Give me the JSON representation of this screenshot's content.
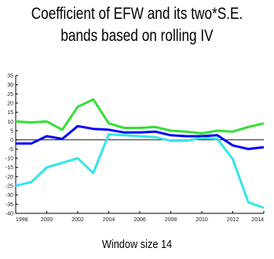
{
  "chart_data": {
    "type": "line",
    "title_lines": [
      "Coefficient of EFW and its two*S.E.",
      "bands based on rolling IV"
    ],
    "xlabel": "Window size 14",
    "ylabel": "",
    "x": [
      1998,
      1999,
      2000,
      2001,
      2002,
      2003,
      2004,
      2005,
      2006,
      2007,
      2008,
      2009,
      2010,
      2011,
      2012,
      2013,
      2014
    ],
    "xlim": [
      1998,
      2014
    ],
    "ylim": [
      -40,
      35
    ],
    "x_ticks": [
      1998,
      2000,
      2002,
      2004,
      2006,
      2008,
      2010,
      2012,
      2014
    ],
    "x_tick_labels": [
      "1998",
      "2000",
      "2002",
      "2004",
      "2006",
      "2008",
      "2010",
      "2012",
      "2014"
    ],
    "y_ticks": [
      -40,
      -35,
      -30,
      -25,
      -20,
      -15,
      -10,
      -5,
      0,
      5,
      10,
      15,
      20,
      25,
      30,
      35
    ],
    "y_tick_labels": [
      "-40",
      "-35",
      "-30",
      "-25",
      "-20",
      "-15",
      "-10",
      "-5",
      "0",
      "5",
      "10",
      "15",
      "20",
      "25",
      "30",
      "35"
    ],
    "grid": false,
    "series": [
      {
        "color": "#33e033",
        "values": [
          10,
          9.5,
          10,
          5.5,
          18,
          22,
          9,
          6.5,
          6.5,
          7,
          5,
          4.5,
          3.5,
          5,
          4.5,
          7,
          9
        ]
      },
      {
        "color": "#0000ff",
        "values": [
          -2,
          -2,
          2,
          0.5,
          7.5,
          6,
          5.5,
          4,
          4,
          4.5,
          2.5,
          2,
          2,
          2.5,
          -3,
          -5,
          -4
        ]
      },
      {
        "color": "#33e6e6",
        "values": [
          -25,
          -23,
          -15,
          -12.5,
          -10,
          -18,
          3,
          2.5,
          2,
          1.5,
          -0.5,
          -0.5,
          1,
          0.5,
          -10.5,
          -34,
          -37
        ]
      }
    ],
    "zero_line": true
  }
}
